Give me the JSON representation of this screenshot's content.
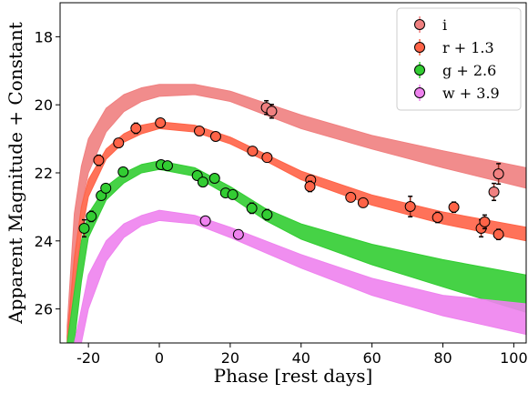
{
  "chart_data": {
    "type": "scatter",
    "x_label": "Phase [rest days]",
    "y_label": "Apparent Magnitude + Constant",
    "xlim": [
      -28,
      103.5
    ],
    "ylim": [
      17,
      27
    ],
    "y_inverted": true,
    "xticks": [
      -20,
      0,
      20,
      40,
      60,
      80,
      100
    ],
    "yticks": [
      18,
      20,
      22,
      24,
      26
    ],
    "legend": "upper right",
    "model_x": [
      -26,
      -24,
      -22,
      -20,
      -15,
      -10,
      -5,
      0,
      10,
      20,
      30,
      40,
      60,
      80,
      103.5
    ],
    "series": [
      {
        "name": "i",
        "color": "#f08080",
        "x": [
          30.2,
          31.7,
          95.7,
          94.4
        ],
        "values": [
          20.08,
          20.19,
          22.03,
          22.56
        ],
        "errors": [
          0.2,
          0.2,
          0.3,
          0.25
        ],
        "model_bright": [
          26.5,
          23.2,
          21.8,
          21.0,
          20.1,
          19.7,
          19.5,
          19.4,
          19.4,
          19.6,
          19.95,
          20.3,
          20.9,
          21.35,
          21.85
        ],
        "model_faint": [
          27,
          24.6,
          23.0,
          22.0,
          20.8,
          20.2,
          19.9,
          19.75,
          19.7,
          19.9,
          20.3,
          20.7,
          21.3,
          21.85,
          22.45
        ]
      },
      {
        "name": "r + 1.3",
        "color": "#ff6347",
        "x": [
          -17.1,
          -11.5,
          -6.6,
          0.3,
          11.3,
          15.9,
          26.3,
          30.4,
          42.7,
          42.5,
          54,
          57.5,
          70.8,
          78.5,
          83.1,
          90.8,
          91.8,
          95.7
        ],
        "values": [
          21.63,
          21.12,
          20.69,
          20.53,
          20.77,
          20.93,
          21.36,
          21.55,
          22.21,
          22.4,
          22.72,
          22.88,
          22.99,
          23.31,
          23.01,
          23.63,
          23.44,
          23.81
        ],
        "errors": [
          0.15,
          0.12,
          0.15,
          0.1,
          0.08,
          0.08,
          0.1,
          0.12,
          0.12,
          0.15,
          0.1,
          0.12,
          0.3,
          0.15,
          0.15,
          0.25,
          0.2,
          0.15
        ],
        "model_bright": [
          26.8,
          24.5,
          23.0,
          22.2,
          21.3,
          20.85,
          20.6,
          20.5,
          20.6,
          20.95,
          21.45,
          21.95,
          22.65,
          23.15,
          23.6
        ],
        "model_faint": [
          27,
          25.5,
          23.8,
          22.7,
          21.6,
          21.1,
          20.85,
          20.7,
          20.8,
          21.15,
          21.65,
          22.2,
          22.95,
          23.5,
          24.0
        ]
      },
      {
        "name": "g + 2.6",
        "color": "#32cd32",
        "x": [
          -21.2,
          -19.2,
          -16.4,
          -15.1,
          -10.2,
          0.5,
          2.3,
          10.7,
          12.3,
          15.6,
          18.7,
          20.7,
          26.1,
          30.4
        ],
        "values": [
          23.63,
          23.28,
          22.67,
          22.45,
          21.97,
          21.76,
          21.79,
          22.08,
          22.27,
          22.16,
          22.59,
          22.64,
          23.04,
          23.23
        ],
        "errors": [
          0.25,
          0.15,
          0.12,
          0.1,
          0.1,
          0.08,
          0.08,
          0.12,
          0.12,
          0.12,
          0.1,
          0.12,
          0.15,
          0.15
        ],
        "model_bright": [
          27,
          25.5,
          24.0,
          23.2,
          22.4,
          22.0,
          21.75,
          21.65,
          21.85,
          22.4,
          23.05,
          23.5,
          24.1,
          24.55,
          25.0
        ],
        "model_faint": [
          27,
          27,
          25.2,
          23.9,
          22.8,
          22.3,
          22.0,
          21.9,
          22.1,
          22.7,
          23.4,
          23.95,
          24.7,
          25.35,
          26.1
        ]
      },
      {
        "name": "w + 3.9",
        "color": "#ee82ee",
        "x": [
          13,
          22.3
        ],
        "values": [
          23.41,
          23.81
        ],
        "errors": [
          0.12,
          0.08
        ],
        "model_bright": [
          27,
          27,
          26.0,
          25.0,
          24.0,
          23.5,
          23.25,
          23.1,
          23.25,
          23.6,
          24.0,
          24.4,
          25.1,
          25.6,
          25.85
        ],
        "model_faint": [
          27,
          27,
          27,
          26.0,
          24.6,
          23.9,
          23.55,
          23.4,
          23.5,
          23.9,
          24.35,
          24.8,
          25.6,
          26.2,
          26.75
        ]
      }
    ]
  }
}
